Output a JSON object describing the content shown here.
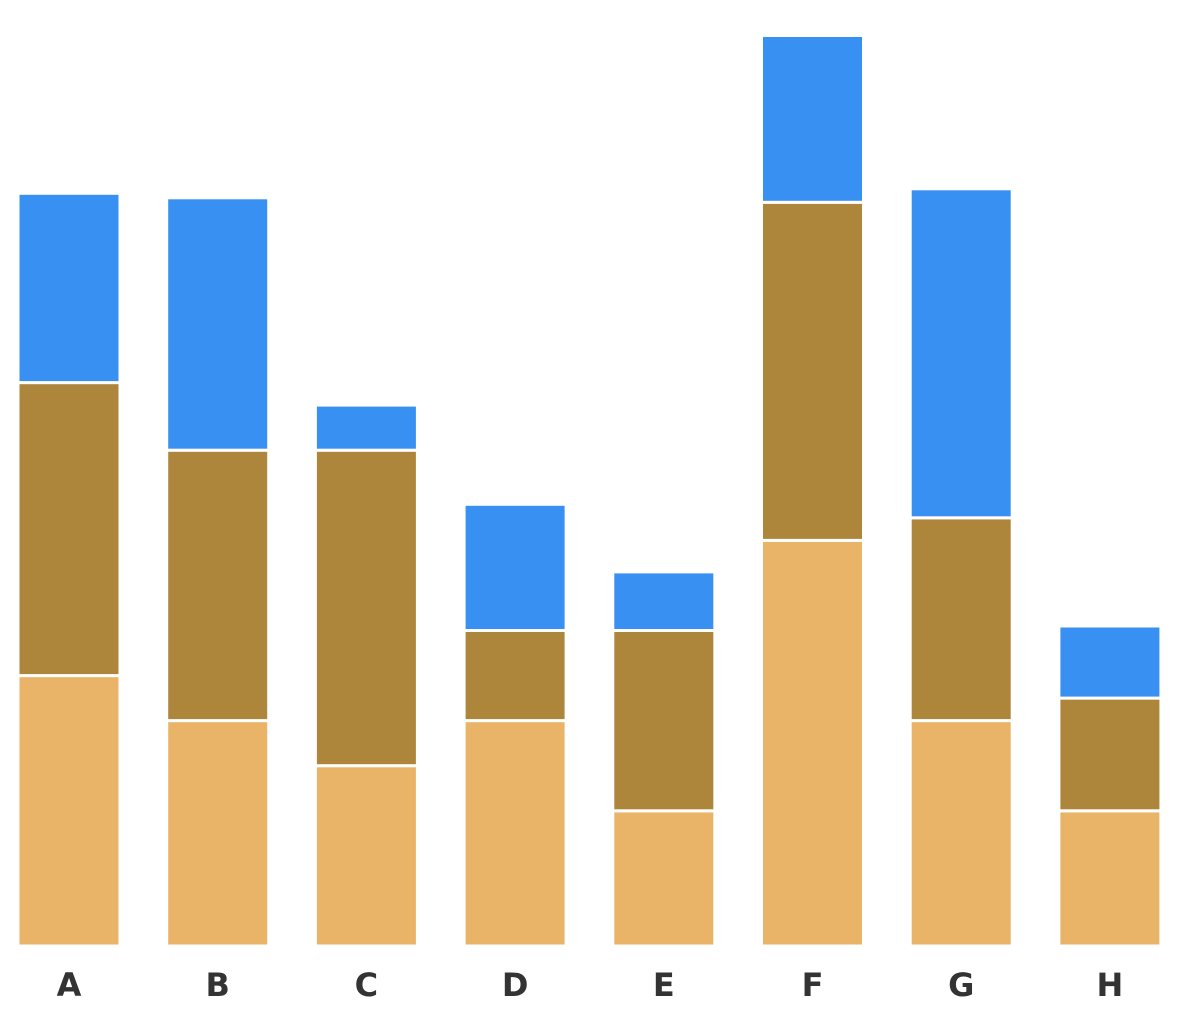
{
  "chart_data": {
    "type": "bar",
    "stacked": true,
    "categories": [
      "A",
      "B",
      "C",
      "D",
      "E",
      "F",
      "G",
      "H"
    ],
    "series": [
      {
        "color": "#e9b468",
        "values": [
          6.0,
          5.0,
          4.0,
          5.0,
          3.0,
          9.0,
          5.0,
          3.0
        ]
      },
      {
        "color": "#ae863b",
        "values": [
          6.5,
          6.0,
          7.0,
          2.0,
          4.0,
          7.5,
          4.5,
          2.5
        ]
      },
      {
        "color": "#3890f2",
        "values": [
          4.2,
          5.6,
          1.0,
          2.8,
          1.3,
          3.7,
          7.3,
          1.6
        ]
      }
    ],
    "ylim": [
      0,
      20.3
    ],
    "grid": false,
    "legend": "none"
  }
}
